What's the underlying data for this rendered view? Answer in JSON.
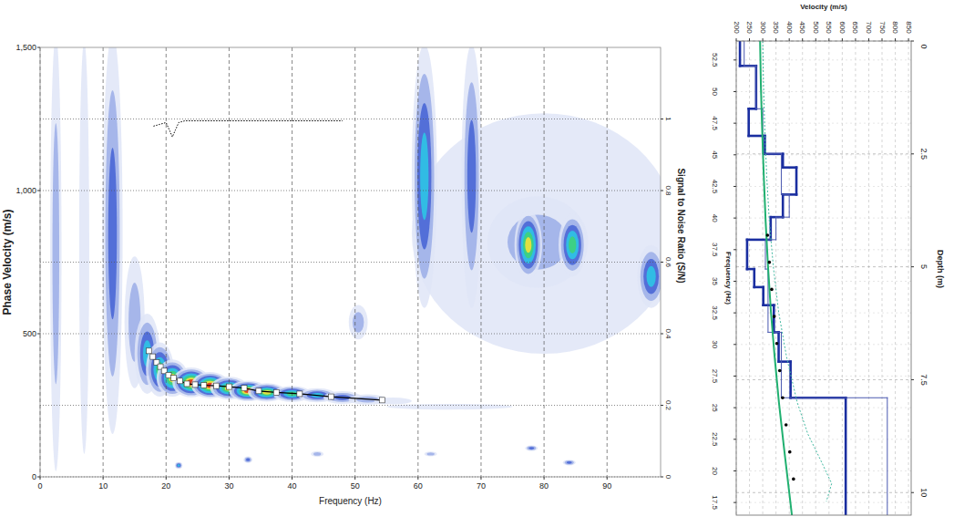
{
  "chart_data": [
    {
      "type": "heatmap",
      "x_label": "Frequency (Hz)",
      "y_label": "Phase Velocity (m/s)",
      "y2_label": "Signal to Noise Ratio (S/N)",
      "xlim": [
        0,
        98.5
      ],
      "xticks": [
        0,
        10,
        20,
        30,
        40,
        50,
        60,
        70,
        80,
        90
      ],
      "ylim": [
        0,
        1500
      ],
      "yticks": [
        0,
        500,
        {
          "value": 1000,
          "label": "1,000"
        },
        {
          "value": 1500,
          "label": "1,500"
        }
      ],
      "y2lim": [
        0,
        1.2
      ],
      "y2ticks": [
        0,
        0.2,
        0.4,
        0.6,
        0.8,
        1
      ],
      "grid": true,
      "colors": [
        "#dfe5f7",
        "#9fb0e8",
        "#4a67d6",
        "#2ec4e6",
        "#3fd27a",
        "#f2e13a",
        "#e3321e"
      ],
      "energy": [
        {
          "x": 80,
          "y": 850,
          "rx": 21,
          "ry": 420,
          "level": 1
        },
        {
          "x": 2.5,
          "y": 780,
          "rx": 0.9,
          "ry": 760,
          "level": 2
        },
        {
          "x": 7,
          "y": 800,
          "rx": 0.8,
          "ry": 720,
          "level": 1
        },
        {
          "x": 11.5,
          "y": 850,
          "rx": 1.6,
          "ry": 700,
          "level": 3
        },
        {
          "x": 61,
          "y": 1050,
          "rx": 2,
          "ry": 460,
          "level": 4
        },
        {
          "x": 68.5,
          "y": 1050,
          "rx": 1.6,
          "ry": 460,
          "level": 3
        },
        {
          "x": 79,
          "y": 820,
          "rx": 8,
          "ry": 160,
          "level": 2
        },
        {
          "x": 77.5,
          "y": 810,
          "rx": 2.2,
          "ry": 120,
          "level": 6
        },
        {
          "x": 84.5,
          "y": 810,
          "rx": 2.2,
          "ry": 110,
          "level": 5
        },
        {
          "x": 97,
          "y": 700,
          "rx": 2.2,
          "ry": 110,
          "level": 4
        },
        {
          "x": 50.5,
          "y": 540,
          "rx": 1.5,
          "ry": 60,
          "level": 2
        },
        {
          "x": 65,
          "y": 245,
          "rx": 10,
          "ry": 10,
          "level": 1
        },
        {
          "x": 15,
          "y": 540,
          "rx": 1.6,
          "ry": 230,
          "level": 2
        },
        {
          "x": 17,
          "y": 430,
          "rx": 2,
          "ry": 140,
          "level": 4
        },
        {
          "x": 19,
          "y": 375,
          "rx": 2.2,
          "ry": 95,
          "level": 5
        },
        {
          "x": 21,
          "y": 345,
          "rx": 2.5,
          "ry": 65,
          "level": 6
        },
        {
          "x": 24,
          "y": 330,
          "rx": 3,
          "ry": 52,
          "level": 7
        },
        {
          "x": 27,
          "y": 320,
          "rx": 3,
          "ry": 46,
          "level": 7
        },
        {
          "x": 30,
          "y": 310,
          "rx": 3,
          "ry": 40,
          "level": 6
        },
        {
          "x": 33,
          "y": 300,
          "rx": 3,
          "ry": 36,
          "level": 7
        },
        {
          "x": 36,
          "y": 295,
          "rx": 3,
          "ry": 32,
          "level": 6
        },
        {
          "x": 40,
          "y": 290,
          "rx": 3,
          "ry": 28,
          "level": 5
        },
        {
          "x": 44,
          "y": 285,
          "rx": 3,
          "ry": 25,
          "level": 4
        },
        {
          "x": 48,
          "y": 277,
          "rx": 3,
          "ry": 22,
          "level": 3
        },
        {
          "x": 52,
          "y": 270,
          "rx": 3,
          "ry": 18,
          "level": 2
        },
        {
          "x": 56,
          "y": 265,
          "rx": 3,
          "ry": 12,
          "level": 1
        },
        {
          "x": 22,
          "y": 40,
          "rx": 0.6,
          "ry": 12,
          "level": 4
        },
        {
          "x": 33,
          "y": 60,
          "rx": 0.7,
          "ry": 12,
          "level": 3
        },
        {
          "x": 44,
          "y": 80,
          "rx": 1,
          "ry": 10,
          "level": 2
        },
        {
          "x": 62,
          "y": 80,
          "rx": 1,
          "ry": 8,
          "level": 2
        },
        {
          "x": 78,
          "y": 100,
          "rx": 1,
          "ry": 10,
          "level": 3
        },
        {
          "x": 84,
          "y": 50,
          "rx": 1,
          "ry": 10,
          "level": 3
        }
      ],
      "series": [
        {
          "type": "line",
          "marker": "square",
          "color": "#ffffff",
          "x": [
            17.3,
            17.9,
            18.5,
            19.1,
            19.7,
            20.4,
            21.2,
            22.2,
            23.3,
            24.6,
            26,
            28,
            30,
            32.4,
            34.7,
            37.5,
            41.2,
            46.2,
            54.3
          ],
          "values": [
            440,
            420,
            400,
            385,
            370,
            355,
            345,
            335,
            325,
            322,
            320,
            318,
            315,
            310,
            300,
            295,
            290,
            280,
            268
          ]
        },
        {
          "type": "line",
          "line_style": "dotted",
          "axis": "y2",
          "color": "#000000",
          "x": [
            18,
            19,
            20,
            20.5,
            21,
            21.5,
            22,
            23,
            25,
            30,
            35,
            40,
            45,
            48
          ],
          "values": [
            0.98,
            0.985,
            0.99,
            0.97,
            0.95,
            0.97,
            0.99,
            0.995,
            0.995,
            0.995,
            0.995,
            0.995,
            0.995,
            0.995
          ]
        }
      ]
    },
    {
      "type": "profile",
      "x_label": "Velocity (m/s)",
      "y_label": "Depth (m)",
      "y2_label": "Frequency (Hz)",
      "xlim": [
        200,
        860
      ],
      "xticks": [
        200,
        250,
        300,
        350,
        400,
        450,
        500,
        550,
        600,
        650,
        700,
        750,
        800,
        850
      ],
      "ylim": [
        0,
        10.5
      ],
      "yticks": [
        0,
        2.5,
        5,
        7.5,
        10
      ],
      "y2lim": [
        54,
        16.5
      ],
      "y2ticks": [
        52.5,
        50,
        47.5,
        45,
        42.5,
        40,
        37.5,
        35,
        32.5,
        30,
        27.5,
        25,
        22.5,
        20,
        17.5
      ],
      "grid": true,
      "series": [
        {
          "type": "step",
          "color": "#1a2ea0",
          "line_style": "solid",
          "depth": [
            0,
            0.55,
            1.5,
            2.1,
            2.5,
            2.8,
            3.4,
            3.9,
            4.4,
            5.05,
            5.45,
            5.85,
            6.45,
            7.1,
            7.9,
            10.5
          ],
          "velocity": [
            214,
            275,
            247,
            308,
            376,
            427,
            376,
            330,
            241,
            268,
            302,
            342,
            360,
            405,
            613
          ]
        },
        {
          "type": "step",
          "color": "#4a58b0",
          "line_style": "thin",
          "depth": [
            0,
            0.55,
            1.5,
            2.5,
            3.4,
            3.9,
            4.4,
            5.05,
            6.45,
            7.9,
            10.5
          ],
          "velocity": [
            230,
            275,
            300,
            370,
            400,
            350,
            310,
            320,
            370,
            770
          ]
        },
        {
          "type": "line",
          "color": "#20b070",
          "line_style": "solid",
          "depth": [
            0,
            1,
            2,
            3,
            4,
            5,
            6,
            7,
            8,
            9,
            10,
            10.5
          ],
          "velocity": [
            290,
            293,
            298,
            304,
            311,
            320,
            331,
            345,
            361,
            380,
            400,
            410
          ]
        },
        {
          "type": "line",
          "color": "#40b8a0",
          "line_style": "dotted",
          "depth": [
            0,
            1,
            2,
            3,
            4,
            5,
            6,
            7,
            8,
            8.7,
            9.3,
            9.8,
            10.2
          ],
          "velocity": [
            300,
            303,
            308,
            315,
            325,
            340,
            360,
            390,
            430,
            470,
            520,
            560,
            540
          ]
        },
        {
          "type": "scatter",
          "color": "#000000",
          "marker": "circle",
          "depth": [
            4.3,
            4.9,
            5.5,
            6.1,
            6.7,
            7.3,
            7.9,
            8.5,
            9.1,
            9.7
          ],
          "velocity": [
            318,
            325,
            334,
            343,
            353,
            364,
            375,
            388,
            402,
            416
          ]
        }
      ]
    }
  ]
}
